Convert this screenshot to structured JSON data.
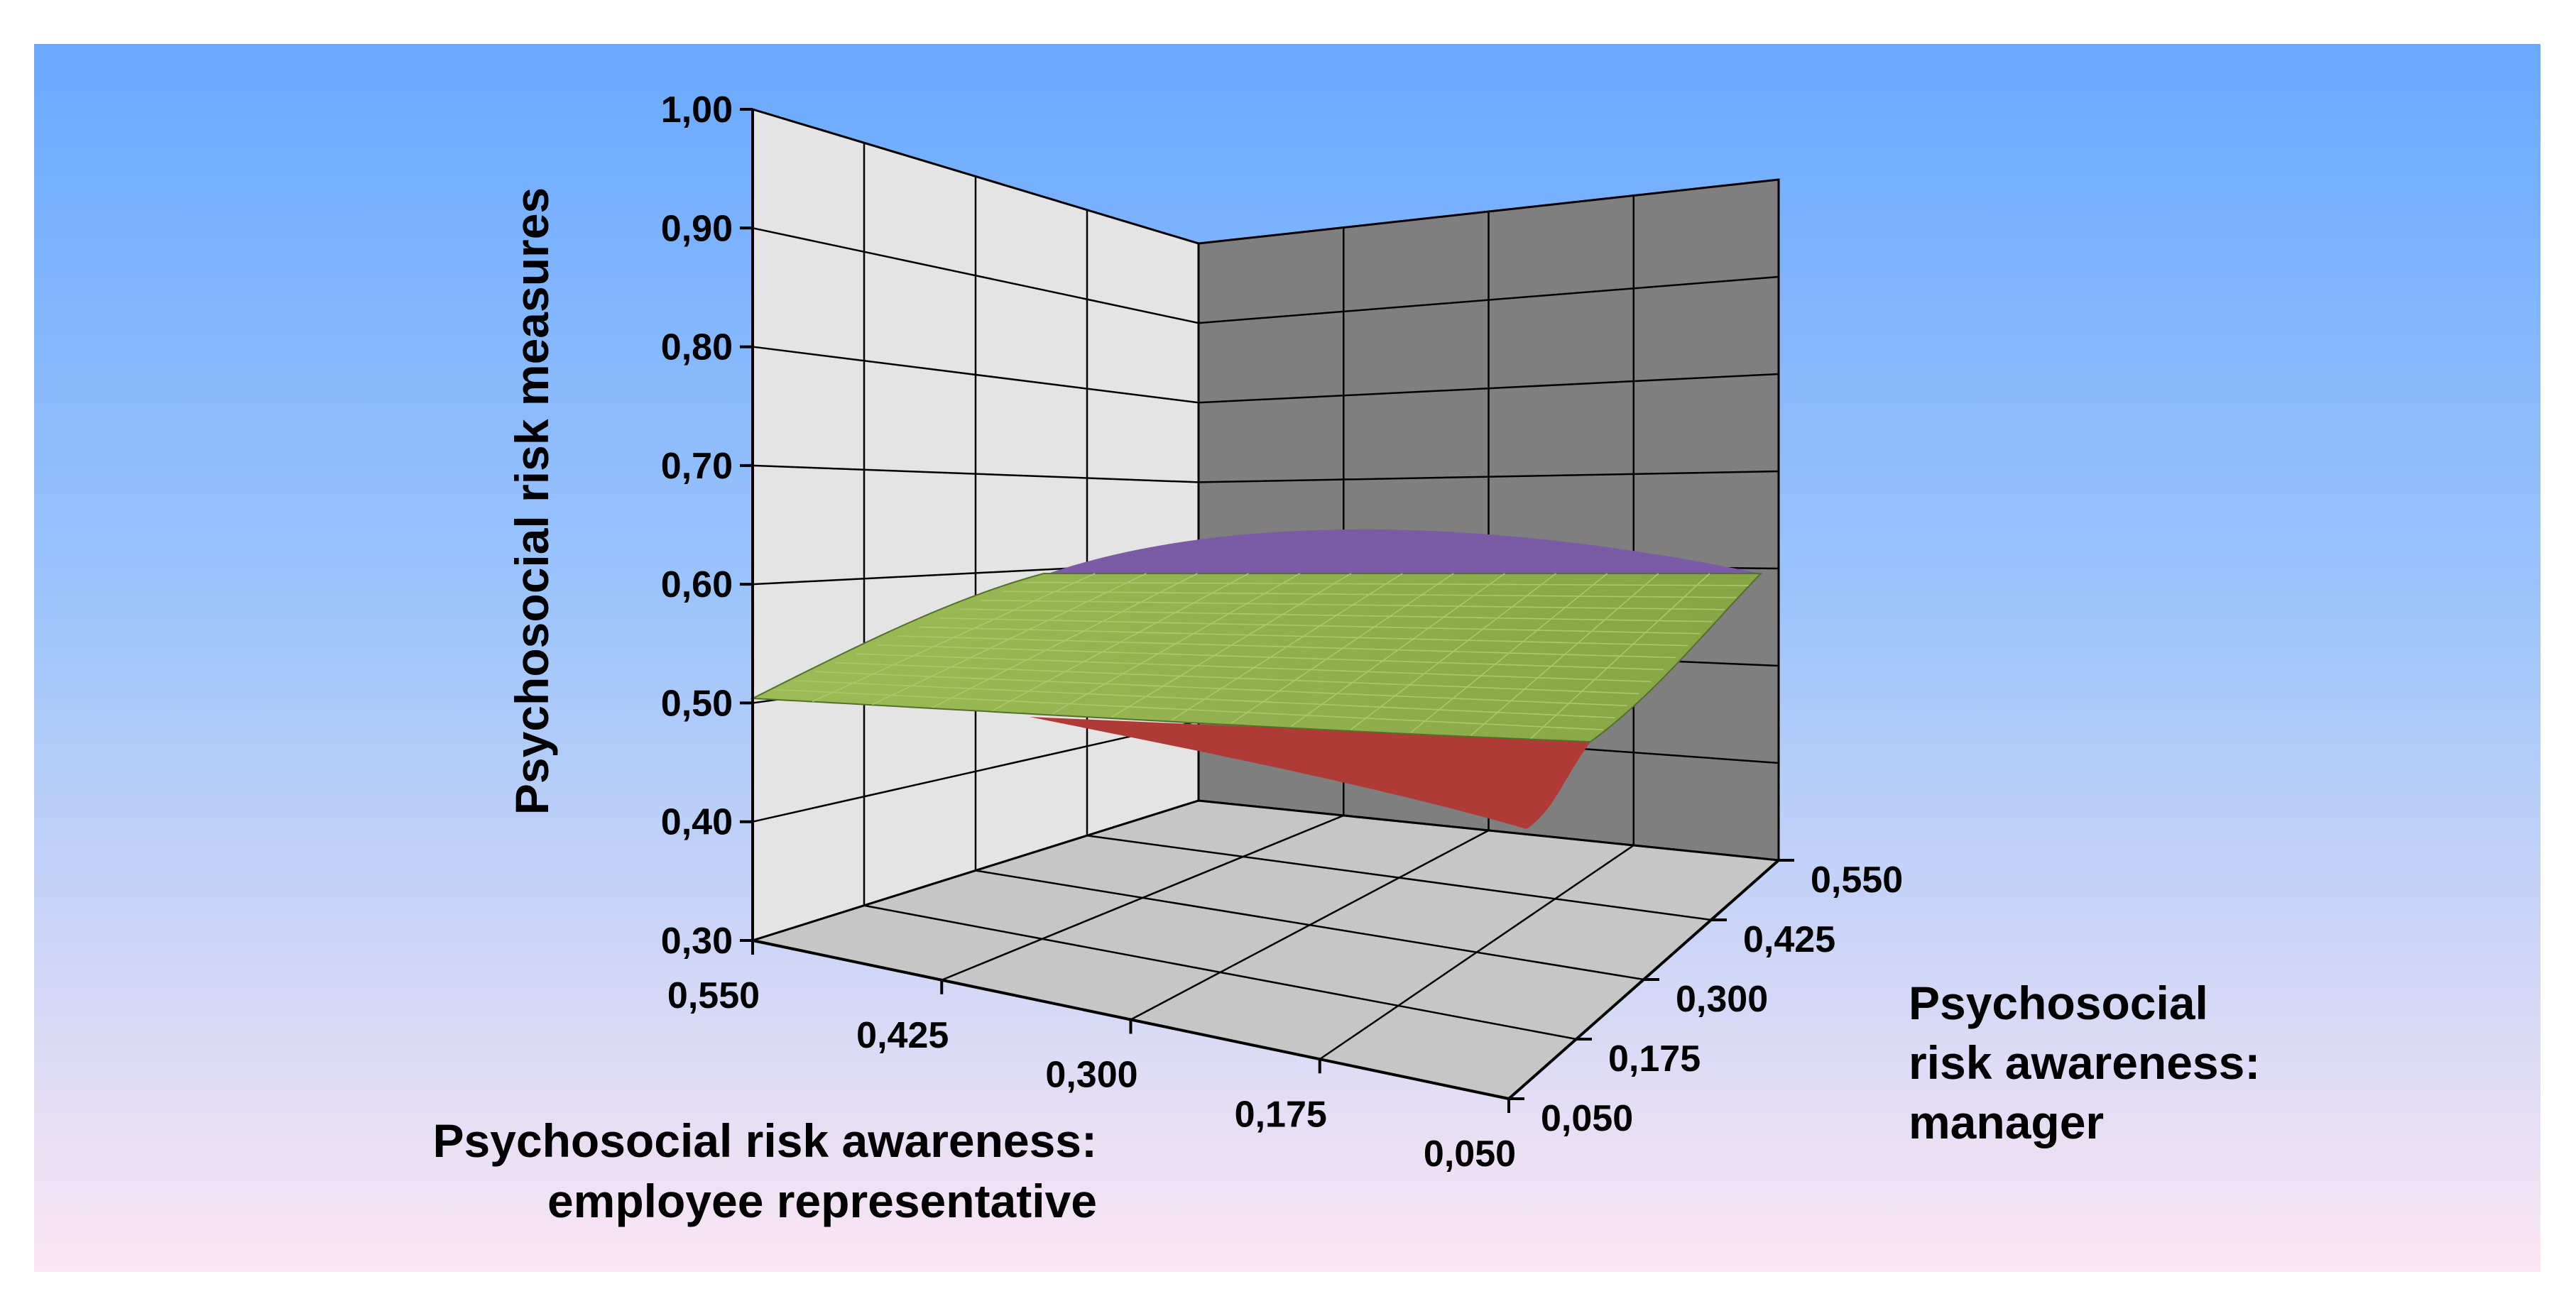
{
  "chart_data": {
    "type": "surface3d",
    "title": "",
    "zlabel": "Psychosocial risk measures",
    "xlabel_lines": [
      "Psychosocial risk awareness:",
      "employee representative"
    ],
    "ylabel_lines": [
      "Psychosocial",
      "risk awareness:",
      "manager"
    ],
    "z_ticks": [
      "1,00",
      "0,90",
      "0,80",
      "0,70",
      "0,60",
      "0,50",
      "0,40",
      "0,30"
    ],
    "x_ticks": [
      "0,550",
      "0,425",
      "0,300",
      "0,175",
      "0,050"
    ],
    "y_ticks": [
      "0,050",
      "0,175",
      "0,300",
      "0,425",
      "0,550"
    ],
    "zlim": [
      0.3,
      1.0
    ],
    "xlim": [
      0.05,
      0.55
    ],
    "ylim": [
      0.05,
      0.55
    ],
    "series": [
      {
        "color": "#8fae4c",
        "shape": "near-flat surface, slight curvature",
        "corners": {
          "x0.550_y0.050": 0.5,
          "x0.050_y0.050": 0.6,
          "x0.550_y0.550": 0.6,
          "x0.050_y0.550": 0.53
        }
      }
    ],
    "colors": {
      "surface_top": "#8fae4c",
      "surface_peak_underside": "#7b5aa6",
      "surface_low_underside": "#b03a36",
      "wall_left": "#e4e4e4",
      "wall_right": "#7f7f7f",
      "floor": "#c6c6c6",
      "bg_top": "#6aa9ff",
      "bg_bottom": "#fbe6f3"
    }
  }
}
